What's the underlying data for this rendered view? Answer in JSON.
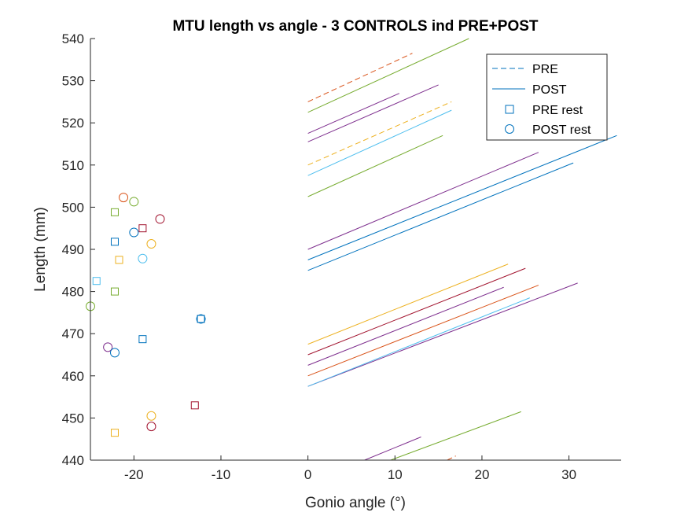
{
  "chart_data": {
    "type": "line",
    "title": "MTU length vs angle - 3 CONTROLS ind PRE+POST",
    "xlabel": "Gonio angle (°)",
    "ylabel": "Length (mm)",
    "xlim": [
      -25,
      36
    ],
    "ylim": [
      440,
      540
    ],
    "xticks": [
      -20,
      -10,
      0,
      10,
      20,
      30
    ],
    "yticks": [
      440,
      450,
      460,
      470,
      480,
      490,
      500,
      510,
      520,
      530,
      540
    ],
    "grid": false,
    "legend_position": "top-right",
    "legend": [
      {
        "label": "PRE",
        "kind": "dashed-line",
        "color": "#0072BD"
      },
      {
        "label": "POST",
        "kind": "solid-line",
        "color": "#0072BD"
      },
      {
        "label": "PRE rest",
        "kind": "square",
        "color": "#0072BD"
      },
      {
        "label": "POST rest",
        "kind": "circle",
        "color": "#0072BD"
      }
    ],
    "lines": [
      {
        "color": "#D95319",
        "dash": true,
        "x": [
          0,
          12
        ],
        "y": [
          525,
          536.5
        ]
      },
      {
        "color": "#77AC30",
        "dash": false,
        "x": [
          0,
          18.5
        ],
        "y": [
          522.5,
          540
        ]
      },
      {
        "color": "#7E2F8E",
        "dash": false,
        "x": [
          0,
          15
        ],
        "y": [
          515.5,
          529
        ]
      },
      {
        "color": "#7E2F8E",
        "dash": false,
        "x": [
          0,
          10.5
        ],
        "y": [
          517.5,
          527
        ]
      },
      {
        "color": "#EDB120",
        "dash": true,
        "x": [
          0,
          16.5
        ],
        "y": [
          510,
          525
        ]
      },
      {
        "color": "#4DBEEE",
        "dash": false,
        "x": [
          0,
          16.5
        ],
        "y": [
          507.5,
          523
        ]
      },
      {
        "color": "#77AC30",
        "dash": false,
        "x": [
          0,
          15.5
        ],
        "y": [
          502.5,
          517
        ]
      },
      {
        "color": "#7E2F8E",
        "dash": false,
        "x": [
          0,
          26.5
        ],
        "y": [
          490,
          513
        ]
      },
      {
        "color": "#0072BD",
        "dash": false,
        "x": [
          0,
          35.5
        ],
        "y": [
          487.5,
          517
        ]
      },
      {
        "color": "#0072BD",
        "dash": false,
        "x": [
          0,
          30.5
        ],
        "y": [
          485,
          510.5
        ]
      },
      {
        "color": "#EDB120",
        "dash": false,
        "x": [
          0,
          23
        ],
        "y": [
          467.5,
          486.5
        ]
      },
      {
        "color": "#A2142F",
        "dash": false,
        "x": [
          0,
          25
        ],
        "y": [
          465,
          485.5
        ]
      },
      {
        "color": "#7E2F8E",
        "dash": false,
        "x": [
          0,
          22.5
        ],
        "y": [
          462.5,
          481
        ]
      },
      {
        "color": "#D95319",
        "dash": false,
        "x": [
          0,
          26.5
        ],
        "y": [
          460,
          481.5
        ]
      },
      {
        "color": "#7E2F8E",
        "dash": false,
        "x": [
          0,
          31
        ],
        "y": [
          457.5,
          482
        ]
      },
      {
        "color": "#4DBEEE",
        "dash": false,
        "x": [
          0,
          25.5
        ],
        "y": [
          457.5,
          478.5
        ]
      },
      {
        "color": "#77AC30",
        "dash": false,
        "x": [
          9.5,
          24.5
        ],
        "y": [
          440,
          451.5
        ]
      },
      {
        "color": "#7E2F8E",
        "dash": false,
        "x": [
          6.5,
          13
        ],
        "y": [
          440,
          445.5
        ]
      },
      {
        "color": "#D95319",
        "dash": true,
        "x": [
          16,
          17
        ],
        "y": [
          440,
          441
        ]
      }
    ],
    "pre_rest": [
      {
        "x": -22.2,
        "y": 498.8,
        "color": "#77AC30"
      },
      {
        "x": -19,
        "y": 495,
        "color": "#A2142F"
      },
      {
        "x": -22.2,
        "y": 491.8,
        "color": "#0072BD"
      },
      {
        "x": -21.7,
        "y": 487.5,
        "color": "#EDB120"
      },
      {
        "x": -24.3,
        "y": 482.5,
        "color": "#4DBEEE"
      },
      {
        "x": -22.2,
        "y": 480,
        "color": "#77AC30"
      },
      {
        "x": -12.3,
        "y": 473.5,
        "color": "#0072BD"
      },
      {
        "x": -19,
        "y": 468.7,
        "color": "#0072BD"
      },
      {
        "x": -13,
        "y": 453,
        "color": "#A2142F"
      },
      {
        "x": -22.2,
        "y": 446.5,
        "color": "#EDB120"
      }
    ],
    "post_rest": [
      {
        "x": -21.2,
        "y": 502.3,
        "color": "#D95319"
      },
      {
        "x": -20,
        "y": 501.3,
        "color": "#77AC30"
      },
      {
        "x": -17,
        "y": 497.2,
        "color": "#A2142F"
      },
      {
        "x": -20,
        "y": 494,
        "color": "#0072BD"
      },
      {
        "x": -18,
        "y": 491.3,
        "color": "#EDB120"
      },
      {
        "x": -19,
        "y": 487.8,
        "color": "#4DBEEE"
      },
      {
        "x": -25,
        "y": 476.5,
        "color": "#77AC30"
      },
      {
        "x": -12.3,
        "y": 473.5,
        "color": "#0072BD"
      },
      {
        "x": -23,
        "y": 466.8,
        "color": "#7E2F8E"
      },
      {
        "x": -22.2,
        "y": 465.5,
        "color": "#0072BD"
      },
      {
        "x": -18,
        "y": 450.5,
        "color": "#EDB120"
      },
      {
        "x": -18,
        "y": 448,
        "color": "#A2142F"
      }
    ]
  }
}
